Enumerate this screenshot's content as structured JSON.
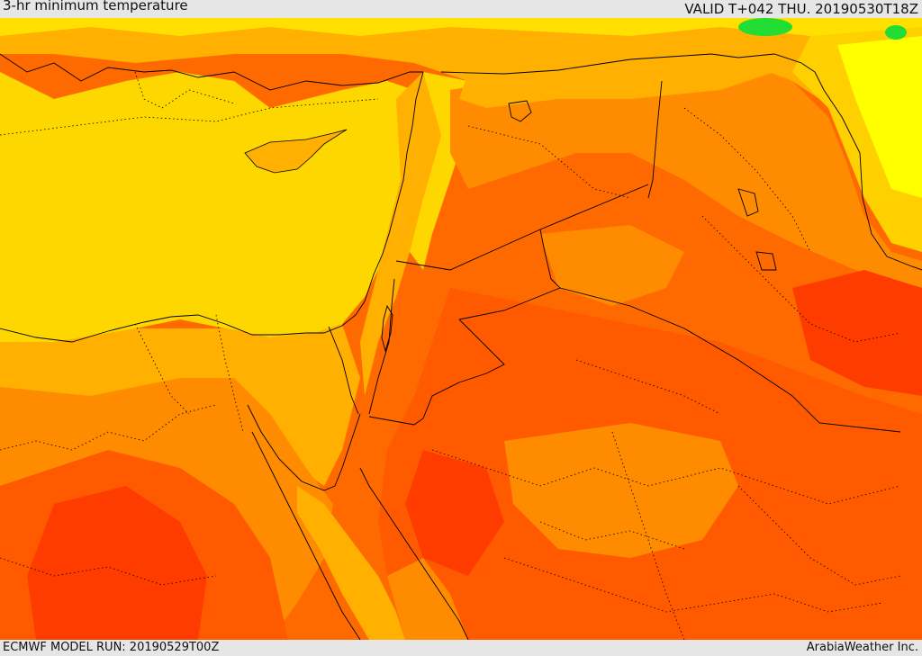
{
  "header": {
    "title": "3-hr minimum temperature",
    "valid": "VALID T+042 THU. 20190530T18Z"
  },
  "footer": {
    "model_run": "ECMWF MODEL RUN: 20190529T00Z",
    "credit": "ArabiaWeather Inc."
  },
  "colors": {
    "sea_yellow": "#ffd700",
    "light_orange": "#ffb000",
    "orange": "#ff8c00",
    "red_orange": "#ff5a00",
    "red": "#ff3a00",
    "pale_yellow": "#ffff00",
    "green": "#22dd33",
    "border": "#000000"
  }
}
